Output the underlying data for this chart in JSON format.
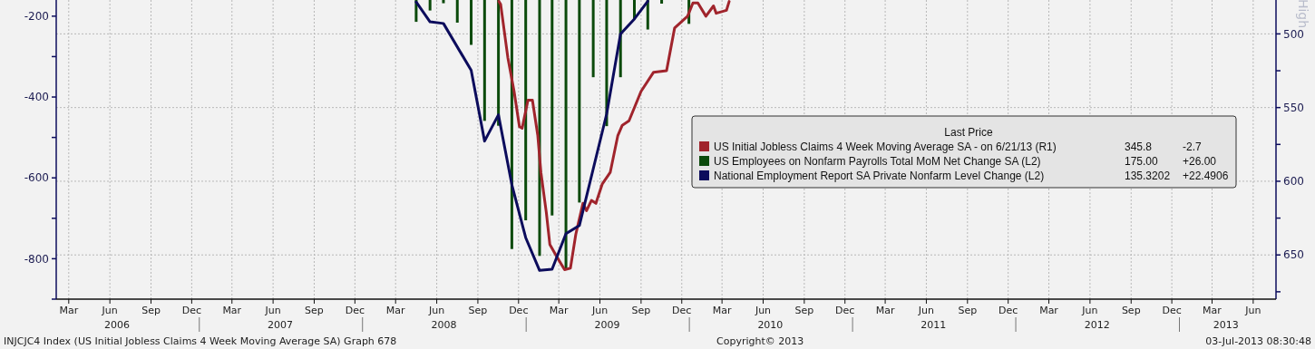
{
  "chart_data": {
    "type": "line",
    "xlim": [
      "2006-02-15",
      "2013-08-05"
    ],
    "xticks": [
      {
        "value": "2006-03-15",
        "label": "Mar"
      },
      {
        "value": "2006-06-15",
        "label": "Jun"
      },
      {
        "value": "2006-09-15",
        "label": "Sep"
      },
      {
        "value": "2006-12-15",
        "label": "Dec"
      },
      {
        "value": "2007-03-15",
        "label": "Mar"
      },
      {
        "value": "2007-06-15",
        "label": "Jun"
      },
      {
        "value": "2007-09-15",
        "label": "Sep"
      },
      {
        "value": "2007-12-15",
        "label": "Dec"
      },
      {
        "value": "2008-03-15",
        "label": "Mar"
      },
      {
        "value": "2008-06-15",
        "label": "Jun"
      },
      {
        "value": "2008-09-15",
        "label": "Sep"
      },
      {
        "value": "2008-12-15",
        "label": "Dec"
      },
      {
        "value": "2009-03-15",
        "label": "Mar"
      },
      {
        "value": "2009-06-15",
        "label": "Jun"
      },
      {
        "value": "2009-09-15",
        "label": "Sep"
      },
      {
        "value": "2009-12-15",
        "label": "Dec"
      },
      {
        "value": "2010-03-15",
        "label": "Mar"
      },
      {
        "value": "2010-06-15",
        "label": "Jun"
      },
      {
        "value": "2010-09-15",
        "label": "Sep"
      },
      {
        "value": "2010-12-15",
        "label": "Dec"
      },
      {
        "value": "2011-03-15",
        "label": "Mar"
      },
      {
        "value": "2011-06-15",
        "label": "Jun"
      },
      {
        "value": "2011-09-15",
        "label": "Sep"
      },
      {
        "value": "2011-12-15",
        "label": "Dec"
      },
      {
        "value": "2012-03-15",
        "label": "Mar"
      },
      {
        "value": "2012-06-15",
        "label": "Jun"
      },
      {
        "value": "2012-09-15",
        "label": "Sep"
      },
      {
        "value": "2012-12-15",
        "label": "Dec"
      },
      {
        "value": "2013-03-15",
        "label": "Mar"
      },
      {
        "value": "2013-06-15",
        "label": "Jun"
      }
    ],
    "x2lim": [
      "2006-02-15",
      "2013-08-05"
    ],
    "x2ticks": [
      {
        "value": "2006-07-01",
        "label": "2006"
      },
      {
        "value": "2007-07-01",
        "label": "2007"
      },
      {
        "value": "2008-07-01",
        "label": "2008"
      },
      {
        "value": "2009-07-01",
        "label": "2009"
      },
      {
        "value": "2010-07-01",
        "label": "2010"
      },
      {
        "value": "2011-07-01",
        "label": "2011"
      },
      {
        "value": "2012-07-01",
        "label": "2012"
      },
      {
        "value": "2013-04-15",
        "label": "2013"
      }
    ],
    "ylim": [
      -900,
      -160
    ],
    "yticks": [
      -200,
      {
        "value": -300,
        "label": null
      },
      -400,
      {
        "value": -500,
        "label": null
      },
      -600,
      {
        "value": -700,
        "label": null
      },
      -800,
      {
        "value": -900,
        "label": null
      }
    ],
    "y2lim": [
      680,
      477
    ],
    "y2ticks": [
      500,
      {
        "value": 525,
        "label": null
      },
      550,
      {
        "value": 575,
        "label": null
      },
      600,
      {
        "value": 625,
        "label": null
      },
      650,
      {
        "value": 675,
        "label": null
      }
    ],
    "y2label": "High",
    "grid": true,
    "legend": "right",
    "legend_title": "Last Price",
    "line_style": "solid",
    "series": [
      {
        "name": "US Initial Jobless Claims 4 Week Moving Average SA -  on 6/21/13  (R1)",
        "axis": "y2",
        "color": "#a0242c",
        "x": [
          "2008-11-01",
          "2008-11-05",
          "2008-11-21",
          "2008-12-05",
          "2008-12-17",
          "2008-12-23",
          "2009-01-05",
          "2009-01-15",
          "2009-01-27",
          "2009-02-03",
          "2009-02-15",
          "2009-02-23",
          "2009-03-10",
          "2009-03-28",
          "2009-04-10",
          "2009-04-22",
          "2009-05-08",
          "2009-05-16",
          "2009-05-27",
          "2009-06-06",
          "2009-06-20",
          "2009-07-08",
          "2009-07-25",
          "2009-08-04",
          "2009-08-19",
          "2009-09-15",
          "2009-10-13",
          "2009-11-11",
          "2009-11-29",
          "2009-12-28",
          "2010-01-09",
          "2010-01-20",
          "2010-02-07",
          "2010-02-24",
          "2010-03-02",
          "2010-03-25",
          "2010-03-31"
        ],
        "values": [
          478,
          480,
          516,
          539,
          563,
          564,
          545,
          545,
          569,
          594,
          621,
          643,
          651,
          660,
          659,
          636,
          615,
          620,
          613,
          615,
          602,
          594,
          569,
          562,
          559,
          539,
          526,
          525,
          496,
          488,
          479,
          479,
          488,
          481,
          486,
          484,
          478
        ]
      },
      {
        "name": "US Employees on Nonfarm Payrolls Total MoM Net Change SA  (L2)",
        "type": "bar",
        "axis": "y",
        "color": "#0b4a0b",
        "x": [
          "2008-04-30",
          "2008-05-31",
          "2008-06-30",
          "2008-07-31",
          "2008-08-31",
          "2008-09-30",
          "2008-10-31",
          "2008-11-30",
          "2008-12-31",
          "2009-01-31",
          "2009-02-28",
          "2009-03-31",
          "2009-04-30",
          "2009-05-31",
          "2009-06-30",
          "2009-07-31",
          "2009-08-31",
          "2009-09-30",
          "2009-10-31",
          "2009-11-30",
          "2009-12-31"
        ],
        "values": [
          -214,
          -186,
          -168,
          -216,
          -271,
          -459,
          -471,
          -776,
          -705,
          -793,
          -693,
          -825,
          -661,
          -351,
          -472,
          -351,
          -208,
          -233,
          -169,
          null,
          -219
        ]
      },
      {
        "name": "National Employment Report SA Private Nonfarm Level Change  (L2)",
        "axis": "y",
        "color": "#0c0c5c",
        "x": [
          "2008-04-30",
          "2008-05-31",
          "2008-06-30",
          "2008-08-31",
          "2008-09-30",
          "2008-10-31",
          "2008-11-30",
          "2008-12-31",
          "2009-01-31",
          "2009-02-28",
          "2009-03-31",
          "2009-04-30",
          "2009-06-30",
          "2009-07-31",
          "2009-08-31",
          "2009-09-30"
        ],
        "values": [
          -165,
          -214,
          -218,
          -334,
          -509,
          -444,
          -617,
          -748,
          -829,
          -826,
          -738,
          -718,
          -442,
          -244,
          -207,
          -163
        ]
      }
    ],
    "annotations": [
      "INJCJC4 Index (US Initial Jobless Claims 4 Week Moving Average SA) Graph 678",
      "Copyright© 2013",
      "03-Jul-2013 08:30:48",
      "345.8",
      "-2.7",
      "175.00",
      "+26.00",
      "135.3202",
      "+22.4906"
    ]
  }
}
